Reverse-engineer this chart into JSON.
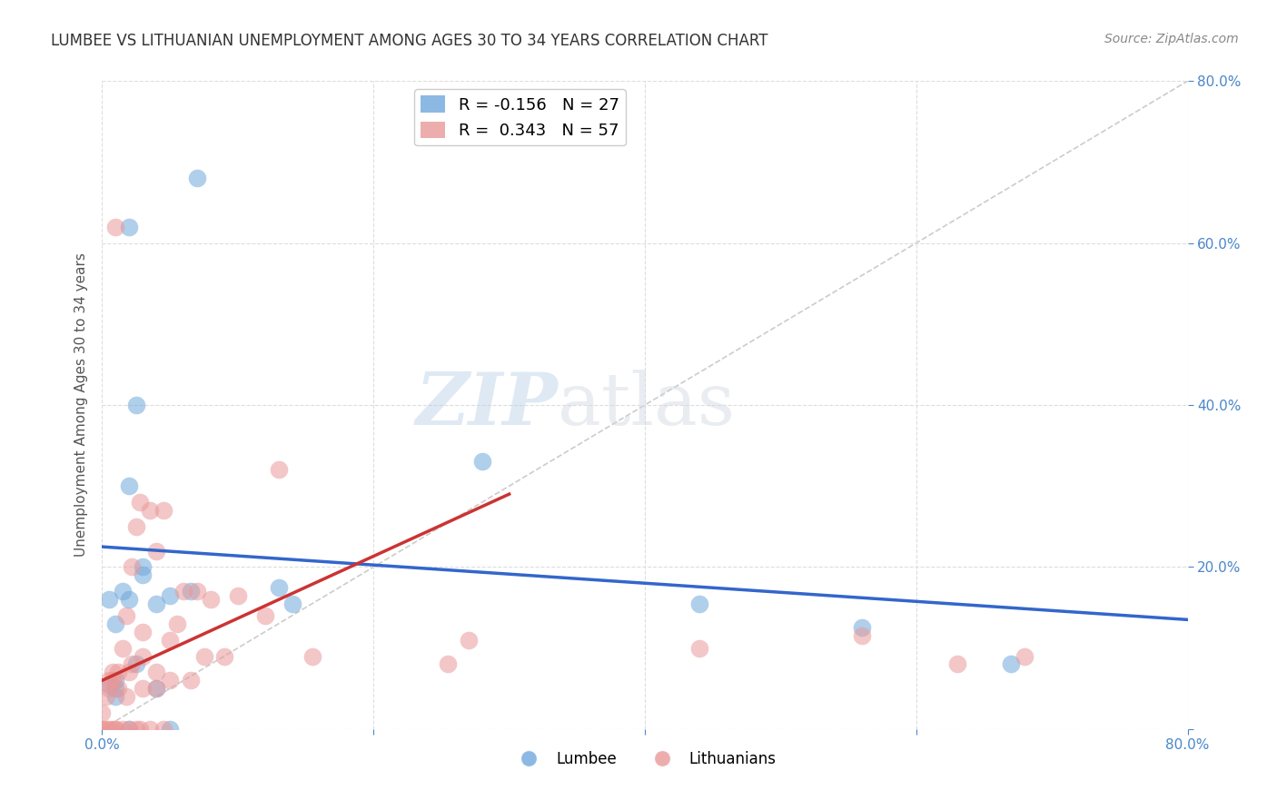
{
  "title": "LUMBEE VS LITHUANIAN UNEMPLOYMENT AMONG AGES 30 TO 34 YEARS CORRELATION CHART",
  "source": "Source: ZipAtlas.com",
  "ylabel": "Unemployment Among Ages 30 to 34 years",
  "xlim": [
    0.0,
    0.8
  ],
  "ylim": [
    0.0,
    0.8
  ],
  "xticks": [
    0.0,
    0.2,
    0.4,
    0.6,
    0.8
  ],
  "yticks": [
    0.0,
    0.2,
    0.4,
    0.6,
    0.8
  ],
  "xticklabels": [
    "0.0%",
    "",
    "",
    "",
    "80.0%"
  ],
  "right_yticklabels": [
    "",
    "20.0%",
    "40.0%",
    "60.0%",
    "80.0%"
  ],
  "lumbee_color": "#6fa8dc",
  "lithuanian_color": "#ea9999",
  "lumbee_R": -0.156,
  "lumbee_N": 27,
  "lithuanian_R": 0.343,
  "lithuanian_N": 57,
  "watermark_zip": "ZIP",
  "watermark_atlas": "atlas",
  "lumbee_x": [
    0.005,
    0.005,
    0.01,
    0.01,
    0.01,
    0.01,
    0.015,
    0.02,
    0.02,
    0.02,
    0.02,
    0.025,
    0.025,
    0.03,
    0.03,
    0.04,
    0.04,
    0.05,
    0.05,
    0.065,
    0.07,
    0.13,
    0.14,
    0.28,
    0.44,
    0.56,
    0.67
  ],
  "lumbee_y": [
    0.055,
    0.16,
    0.04,
    0.05,
    0.06,
    0.13,
    0.17,
    0.62,
    0.0,
    0.16,
    0.3,
    0.4,
    0.08,
    0.19,
    0.2,
    0.155,
    0.05,
    0.165,
    0.0,
    0.17,
    0.68,
    0.175,
    0.155,
    0.33,
    0.155,
    0.125,
    0.08
  ],
  "lithuanian_x": [
    0.0,
    0.0,
    0.0,
    0.003,
    0.003,
    0.005,
    0.005,
    0.005,
    0.008,
    0.008,
    0.008,
    0.01,
    0.01,
    0.01,
    0.012,
    0.012,
    0.015,
    0.015,
    0.018,
    0.018,
    0.02,
    0.02,
    0.022,
    0.022,
    0.025,
    0.025,
    0.028,
    0.028,
    0.03,
    0.03,
    0.03,
    0.035,
    0.035,
    0.04,
    0.04,
    0.04,
    0.045,
    0.045,
    0.05,
    0.05,
    0.055,
    0.06,
    0.065,
    0.07,
    0.075,
    0.08,
    0.09,
    0.1,
    0.12,
    0.13,
    0.155,
    0.255,
    0.27,
    0.44,
    0.56,
    0.63,
    0.68
  ],
  "lithuanian_y": [
    0.0,
    0.0,
    0.02,
    0.0,
    0.04,
    0.0,
    0.05,
    0.06,
    0.0,
    0.06,
    0.07,
    0.0,
    0.0,
    0.62,
    0.05,
    0.07,
    0.0,
    0.1,
    0.04,
    0.14,
    0.0,
    0.07,
    0.08,
    0.2,
    0.0,
    0.25,
    0.0,
    0.28,
    0.05,
    0.09,
    0.12,
    0.0,
    0.27,
    0.05,
    0.07,
    0.22,
    0.0,
    0.27,
    0.06,
    0.11,
    0.13,
    0.17,
    0.06,
    0.17,
    0.09,
    0.16,
    0.09,
    0.165,
    0.14,
    0.32,
    0.09,
    0.08,
    0.11,
    0.1,
    0.115,
    0.08,
    0.09
  ],
  "background_color": "#ffffff",
  "grid_color": "#dddddd",
  "axis_color": "#4a86c8",
  "lumbee_line_color": "#3366cc",
  "lithuanian_line_color": "#cc3333",
  "title_fontsize": 12,
  "marker_size": 10,
  "marker_alpha": 0.55,
  "lumbee_line_x": [
    0.0,
    0.8
  ],
  "lumbee_line_y": [
    0.225,
    0.135
  ],
  "lithuanian_line_x": [
    0.0,
    0.3
  ],
  "lithuanian_line_y": [
    0.06,
    0.29
  ]
}
